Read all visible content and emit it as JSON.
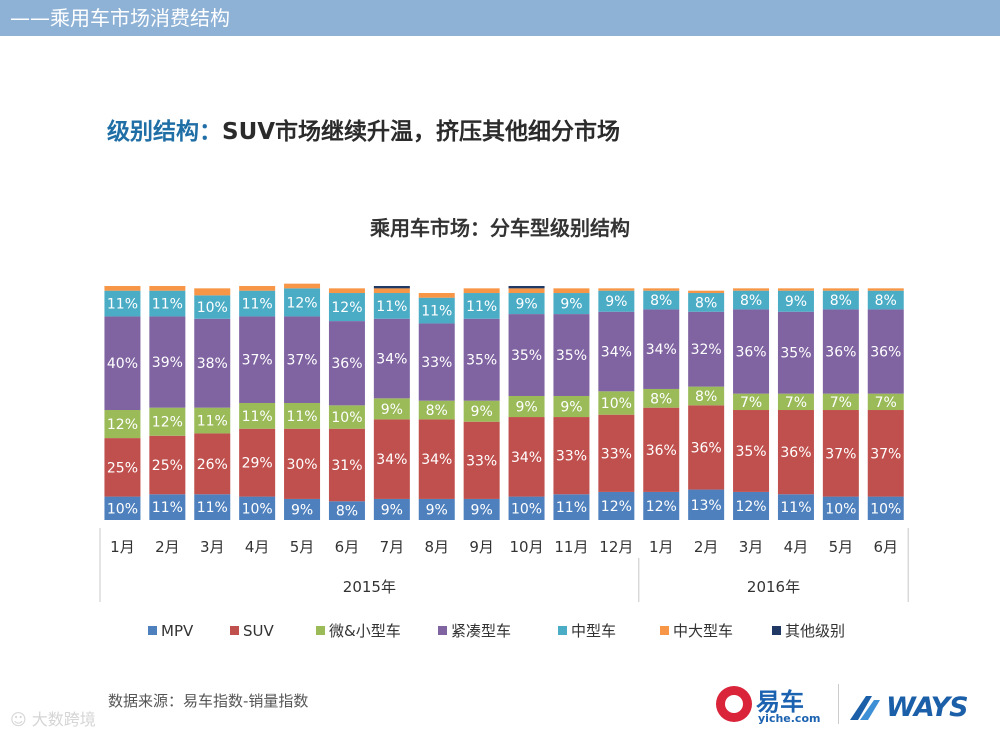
{
  "header": {
    "title": "——乘用车市场消费结构"
  },
  "headline": {
    "lead": "级别结构：",
    "text": "SUV市场继续升温，挤压其他细分市场"
  },
  "source_note": "数据来源：易车指数-销量指数",
  "watermark": "大数跨境",
  "logos": {
    "yiche_brand": "易车",
    "yiche_sub": "yiche.com",
    "ways": "WAYS"
  },
  "colors": {
    "header_bg": "#8eb2d6",
    "headline_accent": "#1f6ea6",
    "series": [
      "#4e80bd",
      "#c0504d",
      "#9bbb59",
      "#8064a2",
      "#4bacc6",
      "#f79646",
      "#1f3864"
    ]
  },
  "chart_data": {
    "type": "bar",
    "stacked": true,
    "percent": true,
    "title": "乘用车市场：分车型级别结构",
    "categories": [
      "1月",
      "2月",
      "3月",
      "4月",
      "5月",
      "6月",
      "7月",
      "8月",
      "9月",
      "10月",
      "11月",
      "12月",
      "1月",
      "2月",
      "3月",
      "4月",
      "5月",
      "6月"
    ],
    "groups": [
      {
        "label": "2015年",
        "count": 12
      },
      {
        "label": "2016年",
        "count": 6
      }
    ],
    "series": [
      {
        "name": "MPV",
        "values": [
          10,
          11,
          11,
          10,
          9,
          8,
          9,
          9,
          9,
          10,
          11,
          12,
          12,
          13,
          12,
          11,
          10,
          10
        ]
      },
      {
        "name": "SUV",
        "values": [
          25,
          25,
          26,
          29,
          30,
          31,
          34,
          34,
          33,
          34,
          33,
          33,
          36,
          36,
          35,
          36,
          37,
          37
        ]
      },
      {
        "name": "微&小型车",
        "values": [
          12,
          12,
          11,
          11,
          11,
          10,
          9,
          8,
          9,
          9,
          9,
          10,
          8,
          8,
          7,
          7,
          7,
          7
        ]
      },
      {
        "name": "紧凑型车",
        "values": [
          40,
          39,
          38,
          37,
          37,
          36,
          34,
          33,
          35,
          35,
          35,
          34,
          34,
          32,
          36,
          35,
          36,
          36
        ]
      },
      {
        "name": "中型车",
        "values": [
          11,
          11,
          10,
          11,
          12,
          12,
          11,
          11,
          11,
          9,
          9,
          9,
          8,
          8,
          8,
          9,
          8,
          8
        ]
      },
      {
        "name": "中大型车",
        "values": [
          2,
          2,
          3,
          2,
          2,
          2,
          2,
          2,
          2,
          2,
          2,
          1,
          1,
          1,
          1,
          1,
          1,
          1
        ]
      },
      {
        "name": "其他级别",
        "values": [
          0,
          0,
          0,
          0,
          0,
          0,
          1,
          0,
          0,
          1,
          0,
          0,
          0,
          0,
          0,
          0,
          0,
          0
        ]
      }
    ],
    "labeled_series": [
      "MPV",
      "SUV",
      "微&小型车",
      "紧凑型车",
      "中型车"
    ],
    "legend_position": "bottom",
    "ylim": [
      0,
      100
    ]
  }
}
